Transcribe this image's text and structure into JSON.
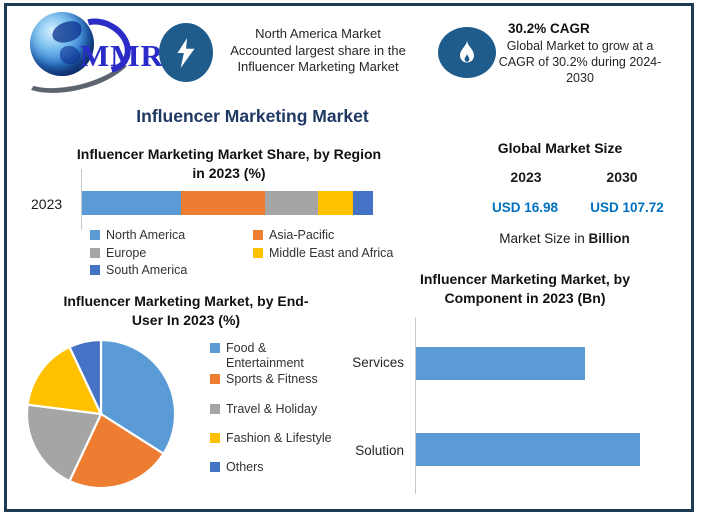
{
  "brand": {
    "name": "MMR"
  },
  "header": {
    "highlight": {
      "lines": [
        "North America Market",
        "Accounted largest share in the",
        "Influencer Marketing Market"
      ]
    },
    "cagr": {
      "title": "30.2% CAGR",
      "lines": [
        "Global Market to grow at a",
        "CAGR of 30.2% during 2024-",
        "2030"
      ]
    }
  },
  "main_title": "Influencer Marketing Market",
  "region_chart": {
    "title_line1": "Influencer Marketing Market Share, by Region",
    "title_line2": "in 2023 (%)",
    "category": "2023"
  },
  "market_size": {
    "title": "Global Market Size",
    "year_start": "2023",
    "year_end": "2030",
    "value_start": "USD 16.98",
    "value_end": "USD 107.72",
    "note_prefix": "Market Size in",
    "note_bold": "Billion",
    "value_color": "#0070C0"
  },
  "pie_chart": {
    "title_line1": "Influencer Marketing Market, by End-",
    "title_line2": "User In 2023 (%)"
  },
  "component_chart": {
    "title_line1": "Influencer Marketing Market, by",
    "title_line2": "Component in 2023 (Bn)"
  },
  "chart_data": [
    {
      "type": "bar",
      "subtype": "stacked-horizontal-100pct",
      "title": "Influencer Marketing Market Share, by Region in 2023 (%)",
      "categories": [
        "2023"
      ],
      "series": [
        {
          "name": "North America",
          "values": [
            34
          ],
          "color": "#5B9BD5"
        },
        {
          "name": "Asia-Pacific",
          "values": [
            29
          ],
          "color": "#ED7D31"
        },
        {
          "name": "Europe",
          "values": [
            18
          ],
          "color": "#A5A5A5"
        },
        {
          "name": "Middle East and Africa",
          "values": [
            12
          ],
          "color": "#FFC000"
        },
        {
          "name": "South America",
          "values": [
            7
          ],
          "color": "#4472C4"
        }
      ],
      "xlim": [
        0,
        100
      ],
      "unit": "%",
      "legend_position": "bottom"
    },
    {
      "type": "pie",
      "title": "Influencer Marketing Market, by End-User In 2023 (%)",
      "labels": [
        "Food & Entertainment",
        "Sports & Fitness",
        "Travel & Holiday",
        "Fashion & Lifestyle",
        "Others"
      ],
      "values": [
        34,
        23,
        20,
        16,
        7
      ],
      "colors": [
        "#5B9BD5",
        "#ED7D31",
        "#A5A5A5",
        "#FFC000",
        "#4472C4"
      ],
      "unit": "%",
      "legend_position": "right"
    },
    {
      "type": "bar",
      "subtype": "horizontal",
      "title": "Influencer Marketing Market, by Component in 2023 (Bn)",
      "categories": [
        "Services",
        "Solution"
      ],
      "values": [
        7.3,
        9.7
      ],
      "color": "#5B9BD5",
      "xlim": [
        0,
        10.5
      ],
      "unit": "USD Bn",
      "grid": false
    }
  ]
}
